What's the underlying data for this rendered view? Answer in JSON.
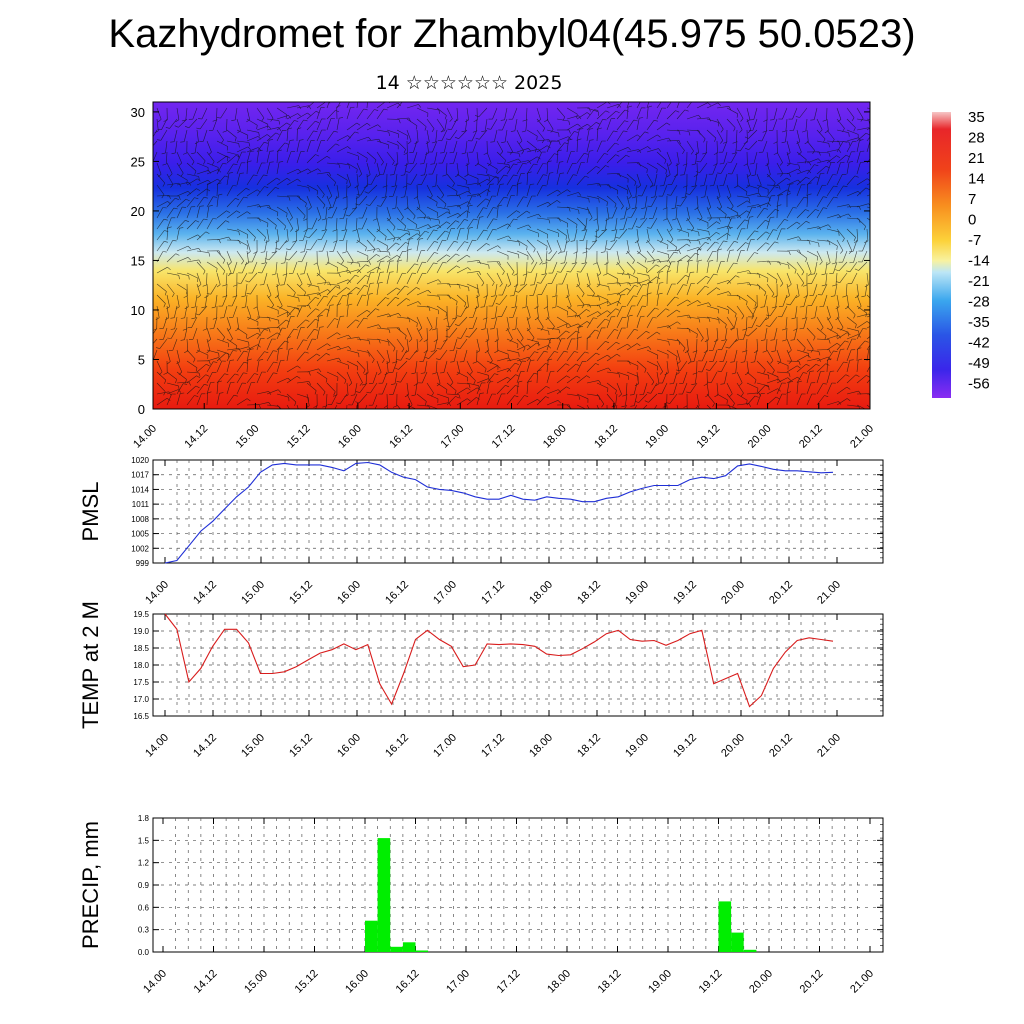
{
  "page": {
    "title": "Kazhydromet for Zhambyl04(45.975 50.0523)",
    "subtitle": "14 ☆☆☆☆☆☆ 2025"
  },
  "colors": {
    "pmsl_line": "#1f2fd6",
    "temp_line": "#d81c1c",
    "precip_bar": "#00ee00",
    "grid": "#555555"
  },
  "time_labels": [
    "14.00",
    "14.12",
    "15.00",
    "15.12",
    "16.00",
    "16.12",
    "17.00",
    "17.12",
    "18.00",
    "18.12",
    "19.00",
    "19.12",
    "20.00",
    "20.12",
    "21.00"
  ],
  "chart_data": [
    {
      "type": "heatmap",
      "name": "cross-section",
      "x_ticks": [
        "14.00",
        "14.12",
        "15.00",
        "15.12",
        "16.00",
        "16.12",
        "17.00",
        "17.12",
        "18.00",
        "18.12",
        "19.00",
        "19.12",
        "20.00",
        "20.12",
        "21.00"
      ],
      "y_ticks": [
        0,
        5,
        10,
        15,
        20,
        25,
        30
      ],
      "ylim": [
        0,
        31
      ],
      "colorbar": {
        "labels": [
          "35",
          "28",
          "21",
          "14",
          "7",
          "0",
          "-7",
          "-14",
          "-21",
          "-28",
          "-35",
          "-42",
          "-49",
          "-56"
        ]
      },
      "levels": [
        {
          "height": 0,
          "value": 30
        },
        {
          "height": 4,
          "value": 26
        },
        {
          "height": 8,
          "value": 18
        },
        {
          "height": 11,
          "value": 10
        },
        {
          "height": 14,
          "value": 2
        },
        {
          "height": 16,
          "value": -10
        },
        {
          "height": 18,
          "value": -24
        },
        {
          "height": 20,
          "value": -36
        },
        {
          "height": 22,
          "value": -46
        },
        {
          "height": 24,
          "value": -53
        },
        {
          "height": 27,
          "value": -55
        },
        {
          "height": 31,
          "value": -60
        }
      ]
    },
    {
      "type": "line",
      "name": "pmsl",
      "ylabel": "PMSL",
      "y_ticks": [
        999,
        1002,
        1005,
        1008,
        1011,
        1014,
        1017,
        1020
      ],
      "ylim": [
        999,
        1020
      ],
      "x_ticks": [
        "14.00",
        "14.12",
        "15.00",
        "15.12",
        "16.00",
        "16.12",
        "17.00",
        "17.12",
        "18.00",
        "18.12",
        "19.00",
        "19.12",
        "20.00",
        "20.12",
        "21.00"
      ],
      "values": [
        999,
        999.5,
        1002.5,
        1005.5,
        1007.5,
        1010,
        1012.5,
        1014.5,
        1017.5,
        1019,
        1019.3,
        1019,
        1019,
        1019,
        1018.5,
        1017.8,
        1019.3,
        1019.5,
        1019,
        1017.5,
        1016.5,
        1016,
        1014.5,
        1014,
        1013.8,
        1013.3,
        1012.5,
        1012,
        1012,
        1012.8,
        1012,
        1011.8,
        1012.5,
        1012.2,
        1012,
        1011.5,
        1011.5,
        1012.2,
        1012.5,
        1013.5,
        1014.2,
        1014.8,
        1014.8,
        1014.8,
        1016,
        1016.5,
        1016.2,
        1016.8,
        1018.8,
        1019.2,
        1018.7,
        1018.1,
        1017.8,
        1017.8,
        1017.6,
        1017.4,
        1017.5
      ]
    },
    {
      "type": "line",
      "name": "temperature",
      "ylabel": "TEMP at 2 M",
      "y_ticks": [
        "16.5",
        "17.0",
        "17.5",
        "18.0",
        "18.5",
        "19.0",
        "19.5"
      ],
      "ylim": [
        16.5,
        19.5
      ],
      "x_ticks": [
        "14.00",
        "14.12",
        "15.00",
        "15.12",
        "16.00",
        "16.12",
        "17.00",
        "17.12",
        "18.00",
        "18.12",
        "19.00",
        "19.12",
        "20.00",
        "20.12",
        "21.00"
      ],
      "values": [
        19.5,
        19.05,
        17.5,
        17.9,
        18.55,
        19.05,
        19.05,
        18.65,
        17.75,
        17.75,
        17.8,
        17.95,
        18.15,
        18.35,
        18.45,
        18.62,
        18.45,
        18.6,
        17.45,
        16.85,
        17.75,
        18.75,
        19.02,
        18.75,
        18.55,
        17.95,
        18.0,
        18.62,
        18.6,
        18.62,
        18.6,
        18.55,
        18.32,
        18.28,
        18.3,
        18.48,
        18.68,
        18.92,
        19.02,
        18.75,
        18.7,
        18.72,
        18.58,
        18.72,
        18.92,
        19.02,
        17.45,
        17.6,
        17.75,
        16.78,
        17.1,
        17.9,
        18.38,
        18.72,
        18.8,
        18.75,
        18.7
      ]
    },
    {
      "type": "bar",
      "name": "precipitation",
      "ylabel": "PRECIP, mm",
      "y_ticks": [
        "0.0",
        "0.3",
        "0.6",
        "0.9",
        "1.2",
        "1.5",
        "1.8"
      ],
      "ylim": [
        0,
        1.8
      ],
      "x_ticks": [
        "14.00",
        "14.12",
        "15.00",
        "15.12",
        "16.00",
        "16.12",
        "17.00",
        "17.12",
        "18.00",
        "18.12",
        "19.00",
        "19.12",
        "20.00",
        "20.12",
        "21.00"
      ],
      "bars": [
        {
          "x_hours": 48,
          "value": 0.42
        },
        {
          "x_hours": 51,
          "value": 1.53
        },
        {
          "x_hours": 54,
          "value": 0.07
        },
        {
          "x_hours": 57,
          "value": 0.13
        },
        {
          "x_hours": 60,
          "value": 0.02
        },
        {
          "x_hours": 132,
          "value": 0.68
        },
        {
          "x_hours": 135,
          "value": 0.26
        },
        {
          "x_hours": 138,
          "value": 0.03
        }
      ]
    }
  ]
}
